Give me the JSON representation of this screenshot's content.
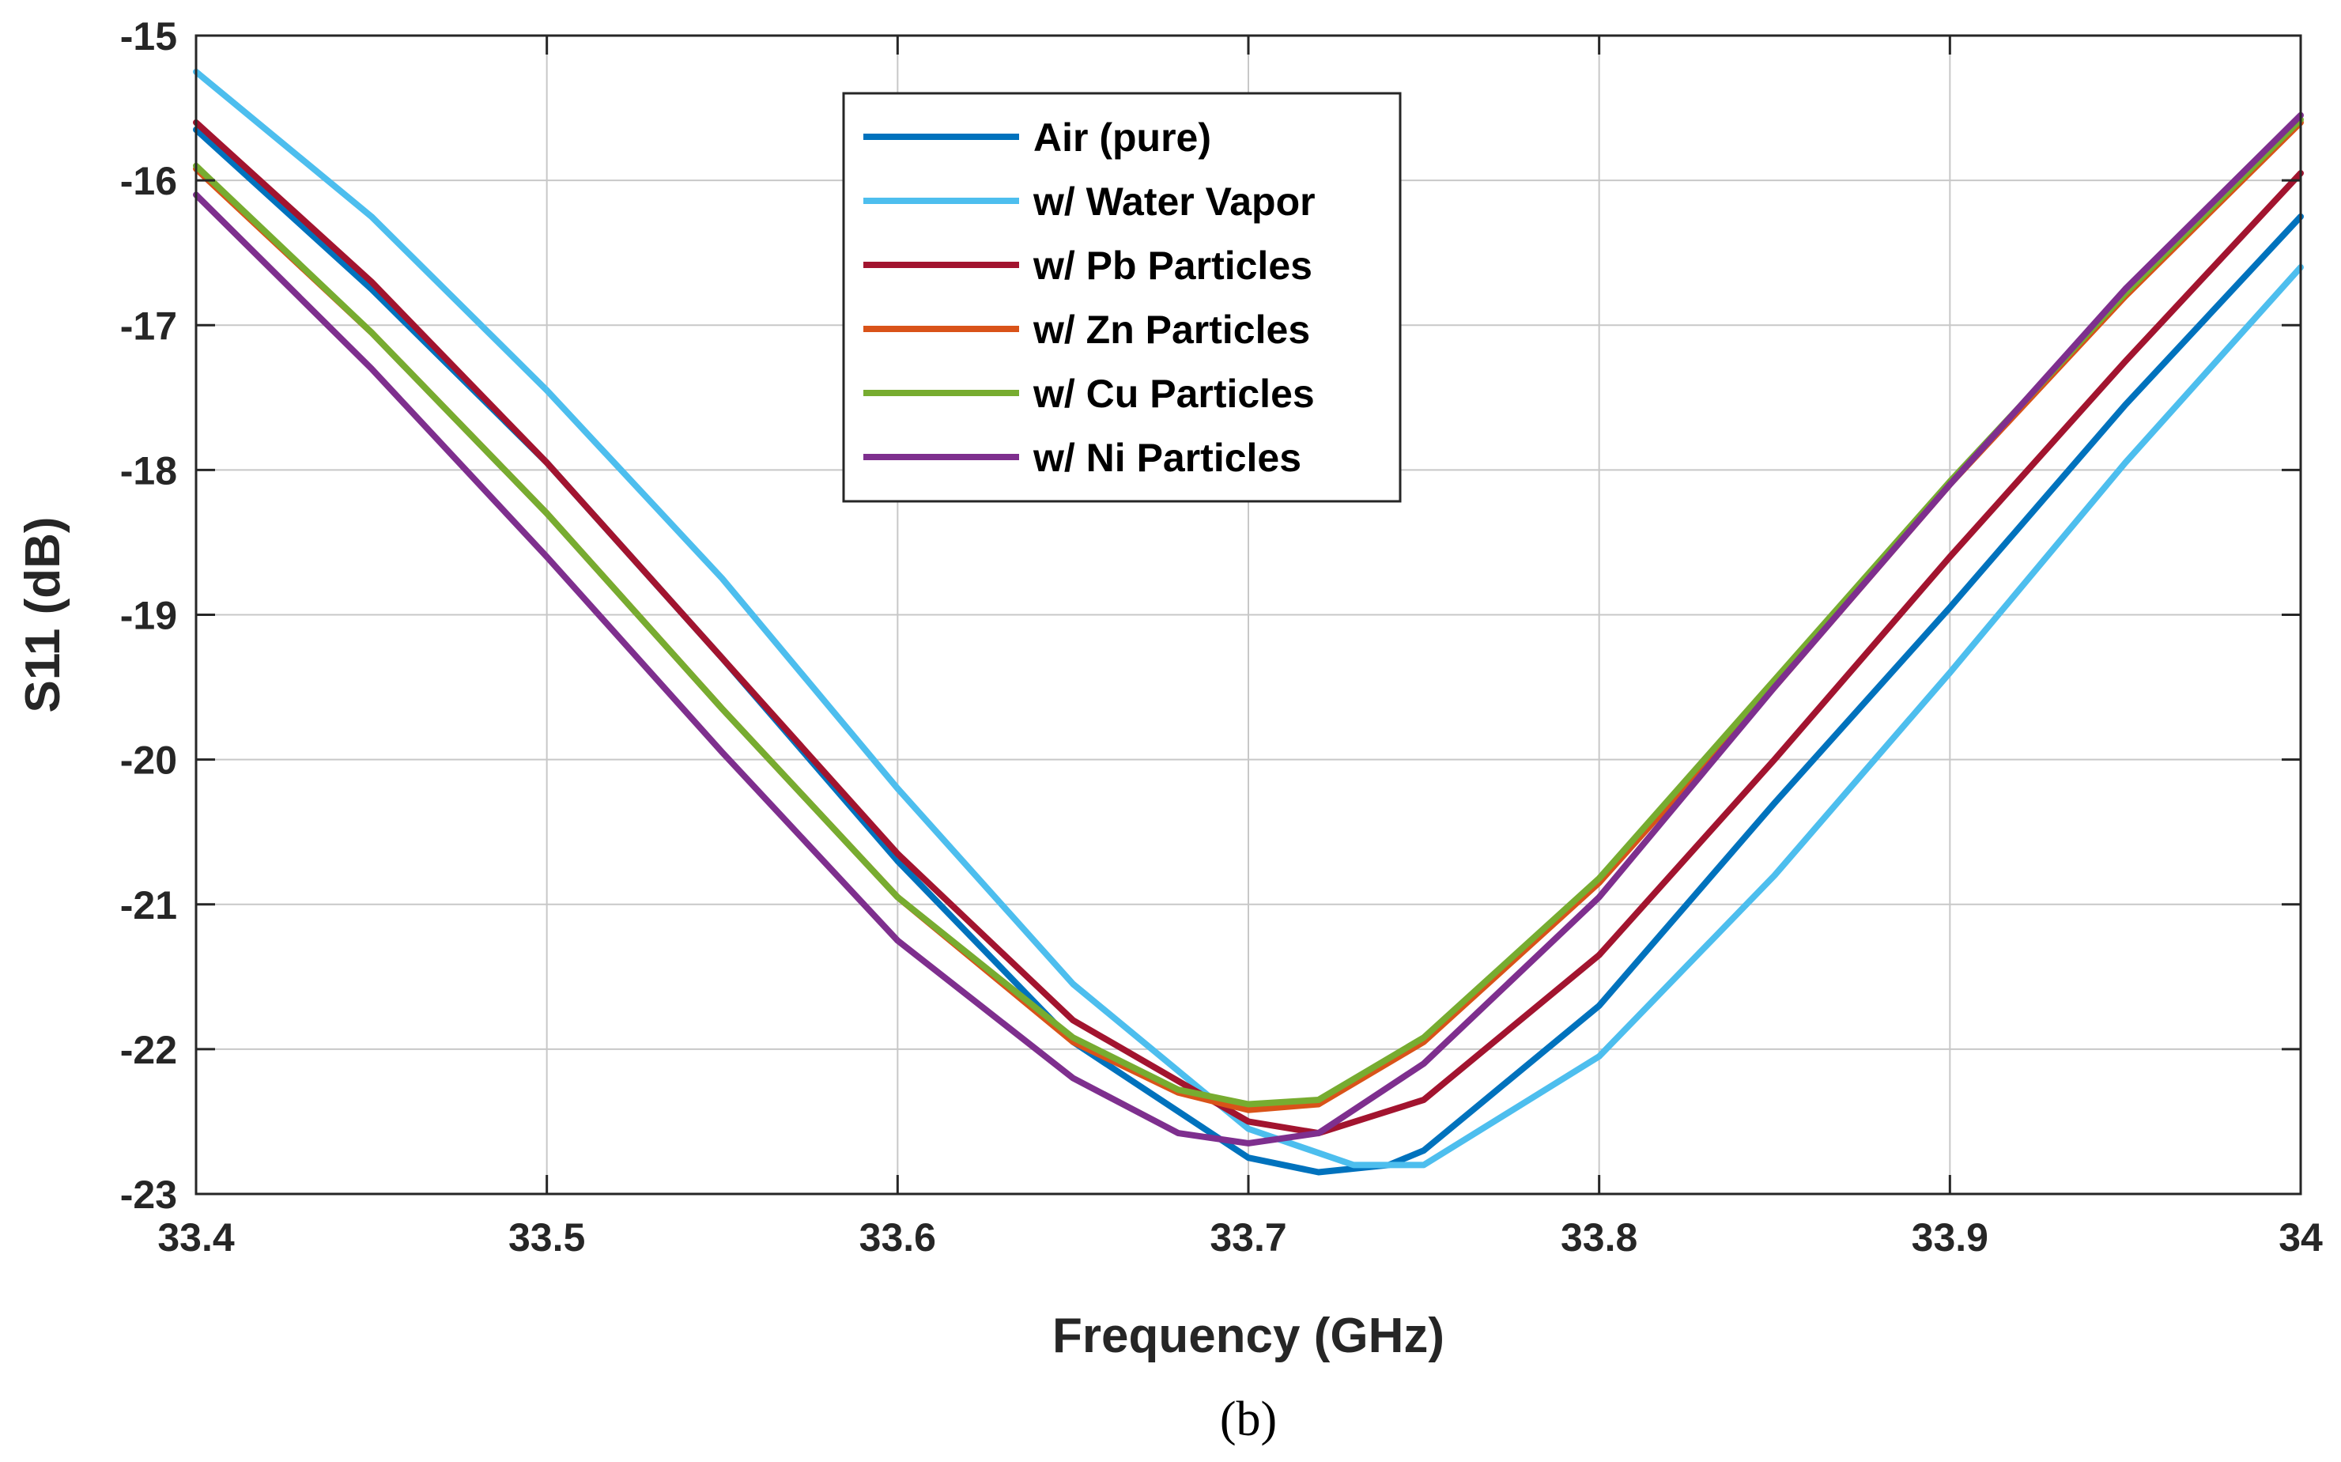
{
  "chart_data": {
    "type": "line",
    "title": "",
    "xlabel": "Frequency (GHz)",
    "ylabel": "S11 (dB)",
    "xlim": [
      33.4,
      34.0
    ],
    "ylim": [
      -23,
      -15
    ],
    "xticks": [
      "33.4",
      "33.5",
      "33.6",
      "33.7",
      "33.8",
      "33.9",
      "34"
    ],
    "yticks": [
      "-15",
      "-16",
      "-17",
      "-18",
      "-19",
      "-20",
      "-21",
      "-22",
      "-23"
    ],
    "grid": true,
    "legend_position": "top-center",
    "caption": "(b)",
    "series": [
      {
        "name": "Air (pure)",
        "color": "#0072BD",
        "x": [
          33.4,
          33.45,
          33.5,
          33.55,
          33.6,
          33.65,
          33.7,
          33.72,
          33.74,
          33.75,
          33.8,
          33.85,
          33.9,
          33.95,
          34.0
        ],
        "y": [
          -15.65,
          -16.75,
          -17.95,
          -19.3,
          -20.7,
          -21.95,
          -22.75,
          -22.85,
          -22.8,
          -22.7,
          -21.7,
          -20.3,
          -18.95,
          -17.55,
          -16.25
        ]
      },
      {
        "name": "w/ Water Vapor",
        "color": "#4DBEEE",
        "x": [
          33.4,
          33.45,
          33.5,
          33.55,
          33.6,
          33.65,
          33.7,
          33.73,
          33.75,
          33.8,
          33.85,
          33.9,
          33.95,
          34.0
        ],
        "y": [
          -15.25,
          -16.25,
          -17.45,
          -18.75,
          -20.2,
          -21.55,
          -22.55,
          -22.8,
          -22.8,
          -22.05,
          -20.8,
          -19.4,
          -17.95,
          -16.6
        ]
      },
      {
        "name": "w/ Pb Particles",
        "color": "#A2142F",
        "x": [
          33.4,
          33.45,
          33.5,
          33.55,
          33.6,
          33.65,
          33.7,
          33.72,
          33.75,
          33.8,
          33.85,
          33.9,
          33.95,
          34.0
        ],
        "y": [
          -15.6,
          -16.7,
          -17.95,
          -19.3,
          -20.65,
          -21.8,
          -22.5,
          -22.58,
          -22.35,
          -21.35,
          -20.0,
          -18.6,
          -17.25,
          -15.95
        ]
      },
      {
        "name": "w/ Zn Particles",
        "color": "#D95319",
        "x": [
          33.4,
          33.45,
          33.5,
          33.55,
          33.6,
          33.65,
          33.68,
          33.7,
          33.72,
          33.75,
          33.8,
          33.85,
          33.9,
          33.95,
          34.0
        ],
        "y": [
          -15.92,
          -17.05,
          -18.3,
          -19.65,
          -20.95,
          -21.95,
          -22.3,
          -22.42,
          -22.38,
          -21.95,
          -20.85,
          -19.5,
          -18.1,
          -16.8,
          -15.6
        ]
      },
      {
        "name": "w/ Cu Particles",
        "color": "#77AC30",
        "x": [
          33.4,
          33.45,
          33.5,
          33.55,
          33.6,
          33.65,
          33.68,
          33.7,
          33.72,
          33.75,
          33.8,
          33.85,
          33.9,
          33.95,
          34.0
        ],
        "y": [
          -15.9,
          -17.05,
          -18.3,
          -19.65,
          -20.95,
          -21.92,
          -22.28,
          -22.38,
          -22.35,
          -21.92,
          -20.82,
          -19.45,
          -18.08,
          -16.78,
          -15.58
        ]
      },
      {
        "name": "w/ Ni Particles",
        "color": "#7E2F8E",
        "x": [
          33.4,
          33.45,
          33.5,
          33.55,
          33.6,
          33.65,
          33.68,
          33.7,
          33.72,
          33.75,
          33.8,
          33.85,
          33.9,
          33.95,
          34.0
        ],
        "y": [
          -16.1,
          -17.3,
          -18.6,
          -19.95,
          -21.25,
          -22.2,
          -22.58,
          -22.65,
          -22.58,
          -22.1,
          -20.95,
          -19.5,
          -18.1,
          -16.75,
          -15.55
        ]
      }
    ]
  }
}
